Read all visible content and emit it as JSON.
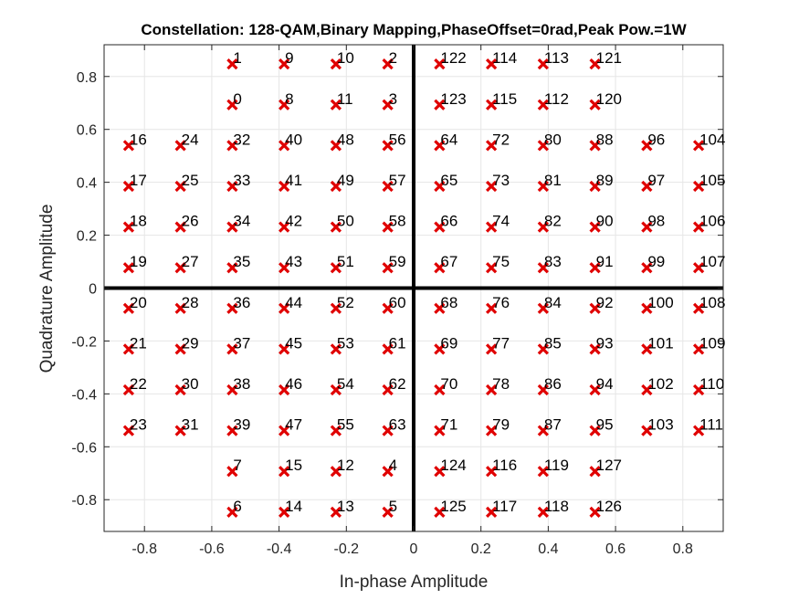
{
  "chart_data": {
    "type": "scatter",
    "title": "Constellation: 128-QAM,Binary Mapping,PhaseOffset=0rad,Peak Pow.=1W",
    "xlabel": "In-phase Amplitude",
    "ylabel": "Quadrature Amplitude",
    "xlim": [
      -0.92,
      0.92
    ],
    "ylim": [
      -0.92,
      0.92
    ],
    "xticks": [
      "-0.8",
      "-0.6",
      "-0.4",
      "-0.2",
      "0",
      "0.2",
      "0.4",
      "0.6",
      "0.8"
    ],
    "xtick_values": [
      -0.8,
      -0.6,
      -0.4,
      -0.2,
      0,
      0.2,
      0.4,
      0.6,
      0.8
    ],
    "yticks": [
      "0.8",
      "0.6",
      "0.4",
      "0.2",
      "0",
      "-0.2",
      "-0.4",
      "-0.6",
      "-0.8"
    ],
    "ytick_values": [
      0.8,
      0.6,
      0.4,
      0.2,
      0,
      -0.2,
      -0.4,
      -0.6,
      -0.8
    ],
    "grid": true,
    "marker": "x",
    "marker_color": "#e00000",
    "points": [
      {
        "label": "0",
        "x": -0.539,
        "y": 0.693
      },
      {
        "label": "1",
        "x": -0.539,
        "y": 0.847
      },
      {
        "label": "2",
        "x": -0.077,
        "y": 0.847
      },
      {
        "label": "3",
        "x": -0.077,
        "y": 0.693
      },
      {
        "label": "4",
        "x": -0.077,
        "y": -0.693
      },
      {
        "label": "5",
        "x": -0.077,
        "y": -0.847
      },
      {
        "label": "6",
        "x": -0.539,
        "y": -0.847
      },
      {
        "label": "7",
        "x": -0.539,
        "y": -0.693
      },
      {
        "label": "8",
        "x": -0.385,
        "y": 0.693
      },
      {
        "label": "9",
        "x": -0.385,
        "y": 0.847
      },
      {
        "label": "10",
        "x": -0.231,
        "y": 0.847
      },
      {
        "label": "11",
        "x": -0.231,
        "y": 0.693
      },
      {
        "label": "12",
        "x": -0.231,
        "y": -0.693
      },
      {
        "label": "13",
        "x": -0.231,
        "y": -0.847
      },
      {
        "label": "14",
        "x": -0.385,
        "y": -0.847
      },
      {
        "label": "15",
        "x": -0.385,
        "y": -0.693
      },
      {
        "label": "16",
        "x": -0.847,
        "y": 0.539
      },
      {
        "label": "17",
        "x": -0.847,
        "y": 0.385
      },
      {
        "label": "18",
        "x": -0.847,
        "y": 0.231
      },
      {
        "label": "19",
        "x": -0.847,
        "y": 0.077
      },
      {
        "label": "20",
        "x": -0.847,
        "y": -0.077
      },
      {
        "label": "21",
        "x": -0.847,
        "y": -0.231
      },
      {
        "label": "22",
        "x": -0.847,
        "y": -0.385
      },
      {
        "label": "23",
        "x": -0.847,
        "y": -0.539
      },
      {
        "label": "24",
        "x": -0.693,
        "y": 0.539
      },
      {
        "label": "25",
        "x": -0.693,
        "y": 0.385
      },
      {
        "label": "26",
        "x": -0.693,
        "y": 0.231
      },
      {
        "label": "27",
        "x": -0.693,
        "y": 0.077
      },
      {
        "label": "28",
        "x": -0.693,
        "y": -0.077
      },
      {
        "label": "29",
        "x": -0.693,
        "y": -0.231
      },
      {
        "label": "30",
        "x": -0.693,
        "y": -0.385
      },
      {
        "label": "31",
        "x": -0.693,
        "y": -0.539
      },
      {
        "label": "32",
        "x": -0.539,
        "y": 0.539
      },
      {
        "label": "33",
        "x": -0.539,
        "y": 0.385
      },
      {
        "label": "34",
        "x": -0.539,
        "y": 0.231
      },
      {
        "label": "35",
        "x": -0.539,
        "y": 0.077
      },
      {
        "label": "36",
        "x": -0.539,
        "y": -0.077
      },
      {
        "label": "37",
        "x": -0.539,
        "y": -0.231
      },
      {
        "label": "38",
        "x": -0.539,
        "y": -0.385
      },
      {
        "label": "39",
        "x": -0.539,
        "y": -0.539
      },
      {
        "label": "40",
        "x": -0.385,
        "y": 0.539
      },
      {
        "label": "41",
        "x": -0.385,
        "y": 0.385
      },
      {
        "label": "42",
        "x": -0.385,
        "y": 0.231
      },
      {
        "label": "43",
        "x": -0.385,
        "y": 0.077
      },
      {
        "label": "44",
        "x": -0.385,
        "y": -0.077
      },
      {
        "label": "45",
        "x": -0.385,
        "y": -0.231
      },
      {
        "label": "46",
        "x": -0.385,
        "y": -0.385
      },
      {
        "label": "47",
        "x": -0.385,
        "y": -0.539
      },
      {
        "label": "48",
        "x": -0.231,
        "y": 0.539
      },
      {
        "label": "49",
        "x": -0.231,
        "y": 0.385
      },
      {
        "label": "50",
        "x": -0.231,
        "y": 0.231
      },
      {
        "label": "51",
        "x": -0.231,
        "y": 0.077
      },
      {
        "label": "52",
        "x": -0.231,
        "y": -0.077
      },
      {
        "label": "53",
        "x": -0.231,
        "y": -0.231
      },
      {
        "label": "54",
        "x": -0.231,
        "y": -0.385
      },
      {
        "label": "55",
        "x": -0.231,
        "y": -0.539
      },
      {
        "label": "56",
        "x": -0.077,
        "y": 0.539
      },
      {
        "label": "57",
        "x": -0.077,
        "y": 0.385
      },
      {
        "label": "58",
        "x": -0.077,
        "y": 0.231
      },
      {
        "label": "59",
        "x": -0.077,
        "y": 0.077
      },
      {
        "label": "60",
        "x": -0.077,
        "y": -0.077
      },
      {
        "label": "61",
        "x": -0.077,
        "y": -0.231
      },
      {
        "label": "62",
        "x": -0.077,
        "y": -0.385
      },
      {
        "label": "63",
        "x": -0.077,
        "y": -0.539
      },
      {
        "label": "64",
        "x": 0.077,
        "y": 0.539
      },
      {
        "label": "65",
        "x": 0.077,
        "y": 0.385
      },
      {
        "label": "66",
        "x": 0.077,
        "y": 0.231
      },
      {
        "label": "67",
        "x": 0.077,
        "y": 0.077
      },
      {
        "label": "68",
        "x": 0.077,
        "y": -0.077
      },
      {
        "label": "69",
        "x": 0.077,
        "y": -0.231
      },
      {
        "label": "70",
        "x": 0.077,
        "y": -0.385
      },
      {
        "label": "71",
        "x": 0.077,
        "y": -0.539
      },
      {
        "label": "72",
        "x": 0.231,
        "y": 0.539
      },
      {
        "label": "73",
        "x": 0.231,
        "y": 0.385
      },
      {
        "label": "74",
        "x": 0.231,
        "y": 0.231
      },
      {
        "label": "75",
        "x": 0.231,
        "y": 0.077
      },
      {
        "label": "76",
        "x": 0.231,
        "y": -0.077
      },
      {
        "label": "77",
        "x": 0.231,
        "y": -0.231
      },
      {
        "label": "78",
        "x": 0.231,
        "y": -0.385
      },
      {
        "label": "79",
        "x": 0.231,
        "y": -0.539
      },
      {
        "label": "80",
        "x": 0.385,
        "y": 0.539
      },
      {
        "label": "81",
        "x": 0.385,
        "y": 0.385
      },
      {
        "label": "82",
        "x": 0.385,
        "y": 0.231
      },
      {
        "label": "83",
        "x": 0.385,
        "y": 0.077
      },
      {
        "label": "84",
        "x": 0.385,
        "y": -0.077
      },
      {
        "label": "85",
        "x": 0.385,
        "y": -0.231
      },
      {
        "label": "86",
        "x": 0.385,
        "y": -0.385
      },
      {
        "label": "87",
        "x": 0.385,
        "y": -0.539
      },
      {
        "label": "88",
        "x": 0.539,
        "y": 0.539
      },
      {
        "label": "89",
        "x": 0.539,
        "y": 0.385
      },
      {
        "label": "90",
        "x": 0.539,
        "y": 0.231
      },
      {
        "label": "91",
        "x": 0.539,
        "y": 0.077
      },
      {
        "label": "92",
        "x": 0.539,
        "y": -0.077
      },
      {
        "label": "93",
        "x": 0.539,
        "y": -0.231
      },
      {
        "label": "94",
        "x": 0.539,
        "y": -0.385
      },
      {
        "label": "95",
        "x": 0.539,
        "y": -0.539
      },
      {
        "label": "96",
        "x": 0.693,
        "y": 0.539
      },
      {
        "label": "97",
        "x": 0.693,
        "y": 0.385
      },
      {
        "label": "98",
        "x": 0.693,
        "y": 0.231
      },
      {
        "label": "99",
        "x": 0.693,
        "y": 0.077
      },
      {
        "label": "100",
        "x": 0.693,
        "y": -0.077
      },
      {
        "label": "101",
        "x": 0.693,
        "y": -0.231
      },
      {
        "label": "102",
        "x": 0.693,
        "y": -0.385
      },
      {
        "label": "103",
        "x": 0.693,
        "y": -0.539
      },
      {
        "label": "104",
        "x": 0.847,
        "y": 0.539
      },
      {
        "label": "105",
        "x": 0.847,
        "y": 0.385
      },
      {
        "label": "106",
        "x": 0.847,
        "y": 0.231
      },
      {
        "label": "107",
        "x": 0.847,
        "y": 0.077
      },
      {
        "label": "108",
        "x": 0.847,
        "y": -0.077
      },
      {
        "label": "109",
        "x": 0.847,
        "y": -0.231
      },
      {
        "label": "110",
        "x": 0.847,
        "y": -0.385
      },
      {
        "label": "111",
        "x": 0.847,
        "y": -0.539
      },
      {
        "label": "112",
        "x": 0.385,
        "y": 0.693
      },
      {
        "label": "113",
        "x": 0.385,
        "y": 0.847
      },
      {
        "label": "114",
        "x": 0.231,
        "y": 0.847
      },
      {
        "label": "115",
        "x": 0.231,
        "y": 0.693
      },
      {
        "label": "116",
        "x": 0.231,
        "y": -0.693
      },
      {
        "label": "117",
        "x": 0.231,
        "y": -0.847
      },
      {
        "label": "118",
        "x": 0.385,
        "y": -0.847
      },
      {
        "label": "119",
        "x": 0.385,
        "y": -0.693
      },
      {
        "label": "120",
        "x": 0.539,
        "y": 0.693
      },
      {
        "label": "121",
        "x": 0.539,
        "y": 0.847
      },
      {
        "label": "122",
        "x": 0.077,
        "y": 0.847
      },
      {
        "label": "123",
        "x": 0.077,
        "y": 0.693
      },
      {
        "label": "124",
        "x": 0.077,
        "y": -0.693
      },
      {
        "label": "125",
        "x": 0.077,
        "y": -0.847
      },
      {
        "label": "126",
        "x": 0.539,
        "y": -0.847
      },
      {
        "label": "127",
        "x": 0.539,
        "y": -0.693
      }
    ]
  }
}
